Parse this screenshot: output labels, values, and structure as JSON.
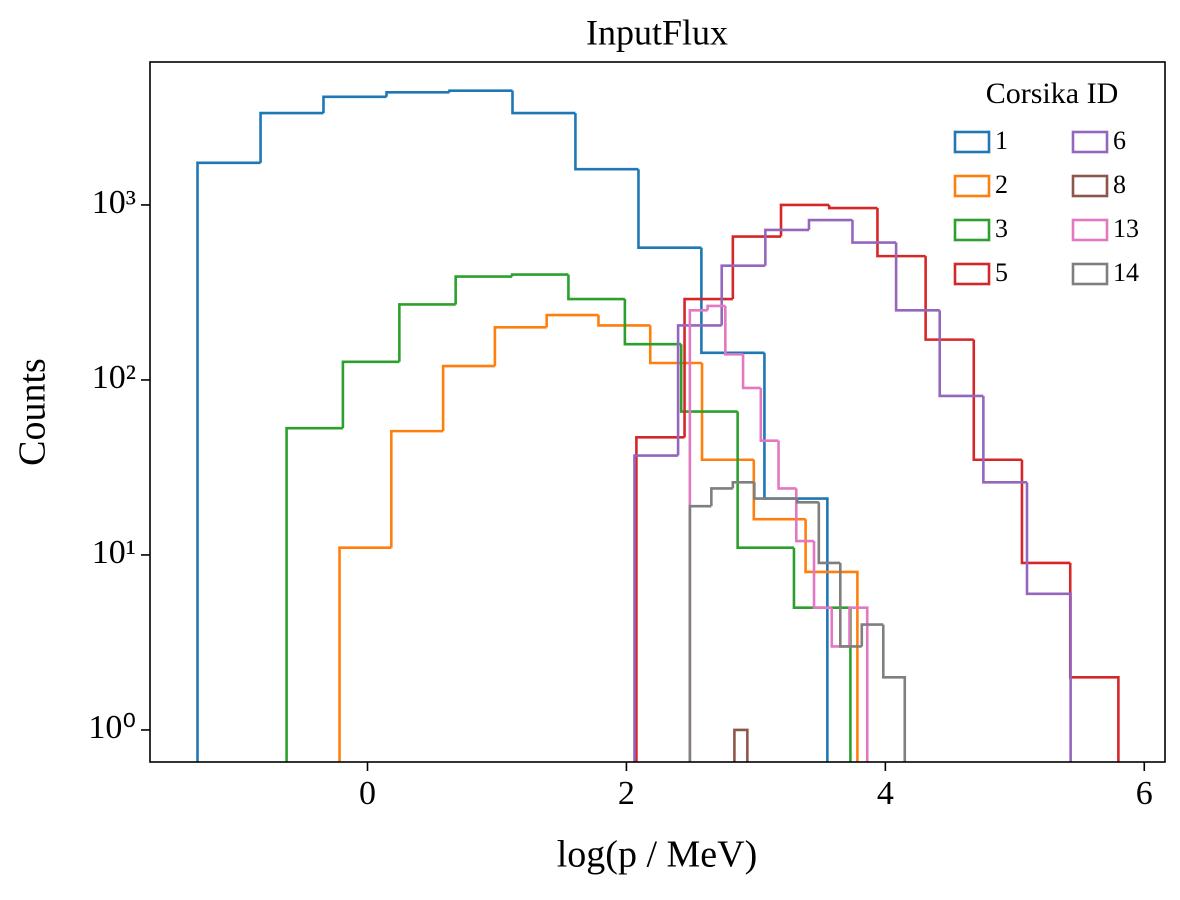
{
  "chart_data": {
    "type": "histogram",
    "title": "InputFlux",
    "xlabel": "log(p / MeV)",
    "ylabel": "Counts",
    "xlim": [
      -1.68,
      6.16
    ],
    "ylim": [
      0.656,
      6560
    ],
    "yscale": "log",
    "xticks": [
      0,
      2,
      4,
      6
    ],
    "yticks": [
      {
        "value": 1,
        "label": "10⁰"
      },
      {
        "value": 10,
        "label": "10¹"
      },
      {
        "value": 100,
        "label": "10²"
      },
      {
        "value": 1000,
        "label": "10³"
      }
    ],
    "legend_title": "Corsika ID",
    "legend_loc": "upper right",
    "series": [
      {
        "name": "1",
        "color": "#1f77b4",
        "bins": [
          -1.313,
          -0.826,
          -0.34,
          0.147,
          0.633,
          1.12,
          1.606,
          2.093,
          2.579,
          3.066,
          3.552
        ],
        "values": [
          1740,
          3350,
          4150,
          4400,
          4500,
          3350,
          1600,
          570,
          143,
          21
        ]
      },
      {
        "name": "2",
        "color": "#ff7f0e",
        "bins": [
          -0.216,
          0.184,
          0.584,
          0.984,
          1.384,
          1.784,
          2.184,
          2.584,
          2.984,
          3.384,
          3.784
        ],
        "values": [
          11,
          51,
          120,
          200,
          235,
          205,
          125,
          35,
          16,
          8
        ]
      },
      {
        "name": "3",
        "color": "#2ca02c",
        "bins": [
          -0.625,
          -0.19,
          0.246,
          0.681,
          1.117,
          1.552,
          1.988,
          2.423,
          2.859,
          3.294,
          3.73
        ],
        "values": [
          53,
          127,
          270,
          390,
          400,
          290,
          160,
          66,
          11,
          5
        ]
      },
      {
        "name": "5",
        "color": "#d62728",
        "bins": [
          2.077,
          2.449,
          2.822,
          3.194,
          3.566,
          3.939,
          4.311,
          4.683,
          5.055,
          5.428,
          5.8
        ],
        "values": [
          47,
          290,
          660,
          1000,
          960,
          510,
          170,
          35,
          9,
          2
        ]
      },
      {
        "name": "6",
        "color": "#9467bd",
        "bins": [
          2.062,
          2.399,
          2.736,
          3.073,
          3.41,
          3.746,
          4.083,
          4.42,
          4.757,
          5.094,
          5.431
        ],
        "values": [
          37,
          205,
          450,
          720,
          820,
          610,
          250,
          81,
          26,
          6
        ]
      },
      {
        "name": "8",
        "color": "#8c564b",
        "bins": [
          2.834,
          2.934
        ],
        "values": [
          1
        ]
      },
      {
        "name": "13",
        "color": "#e377c2",
        "bins": [
          2.49,
          2.627,
          2.764,
          2.901,
          3.038,
          3.175,
          3.312,
          3.449,
          3.586,
          3.723,
          3.86
        ],
        "values": [
          250,
          265,
          140,
          90,
          45,
          24,
          12,
          5,
          3,
          5
        ]
      },
      {
        "name": "14",
        "color": "#7f7f7f",
        "bins": [
          2.49,
          2.656,
          2.822,
          2.988,
          3.154,
          3.32,
          3.486,
          3.652,
          3.818,
          3.984,
          4.15
        ],
        "values": [
          19,
          24,
          26,
          21,
          21,
          20,
          9,
          3,
          4,
          2
        ]
      }
    ]
  }
}
